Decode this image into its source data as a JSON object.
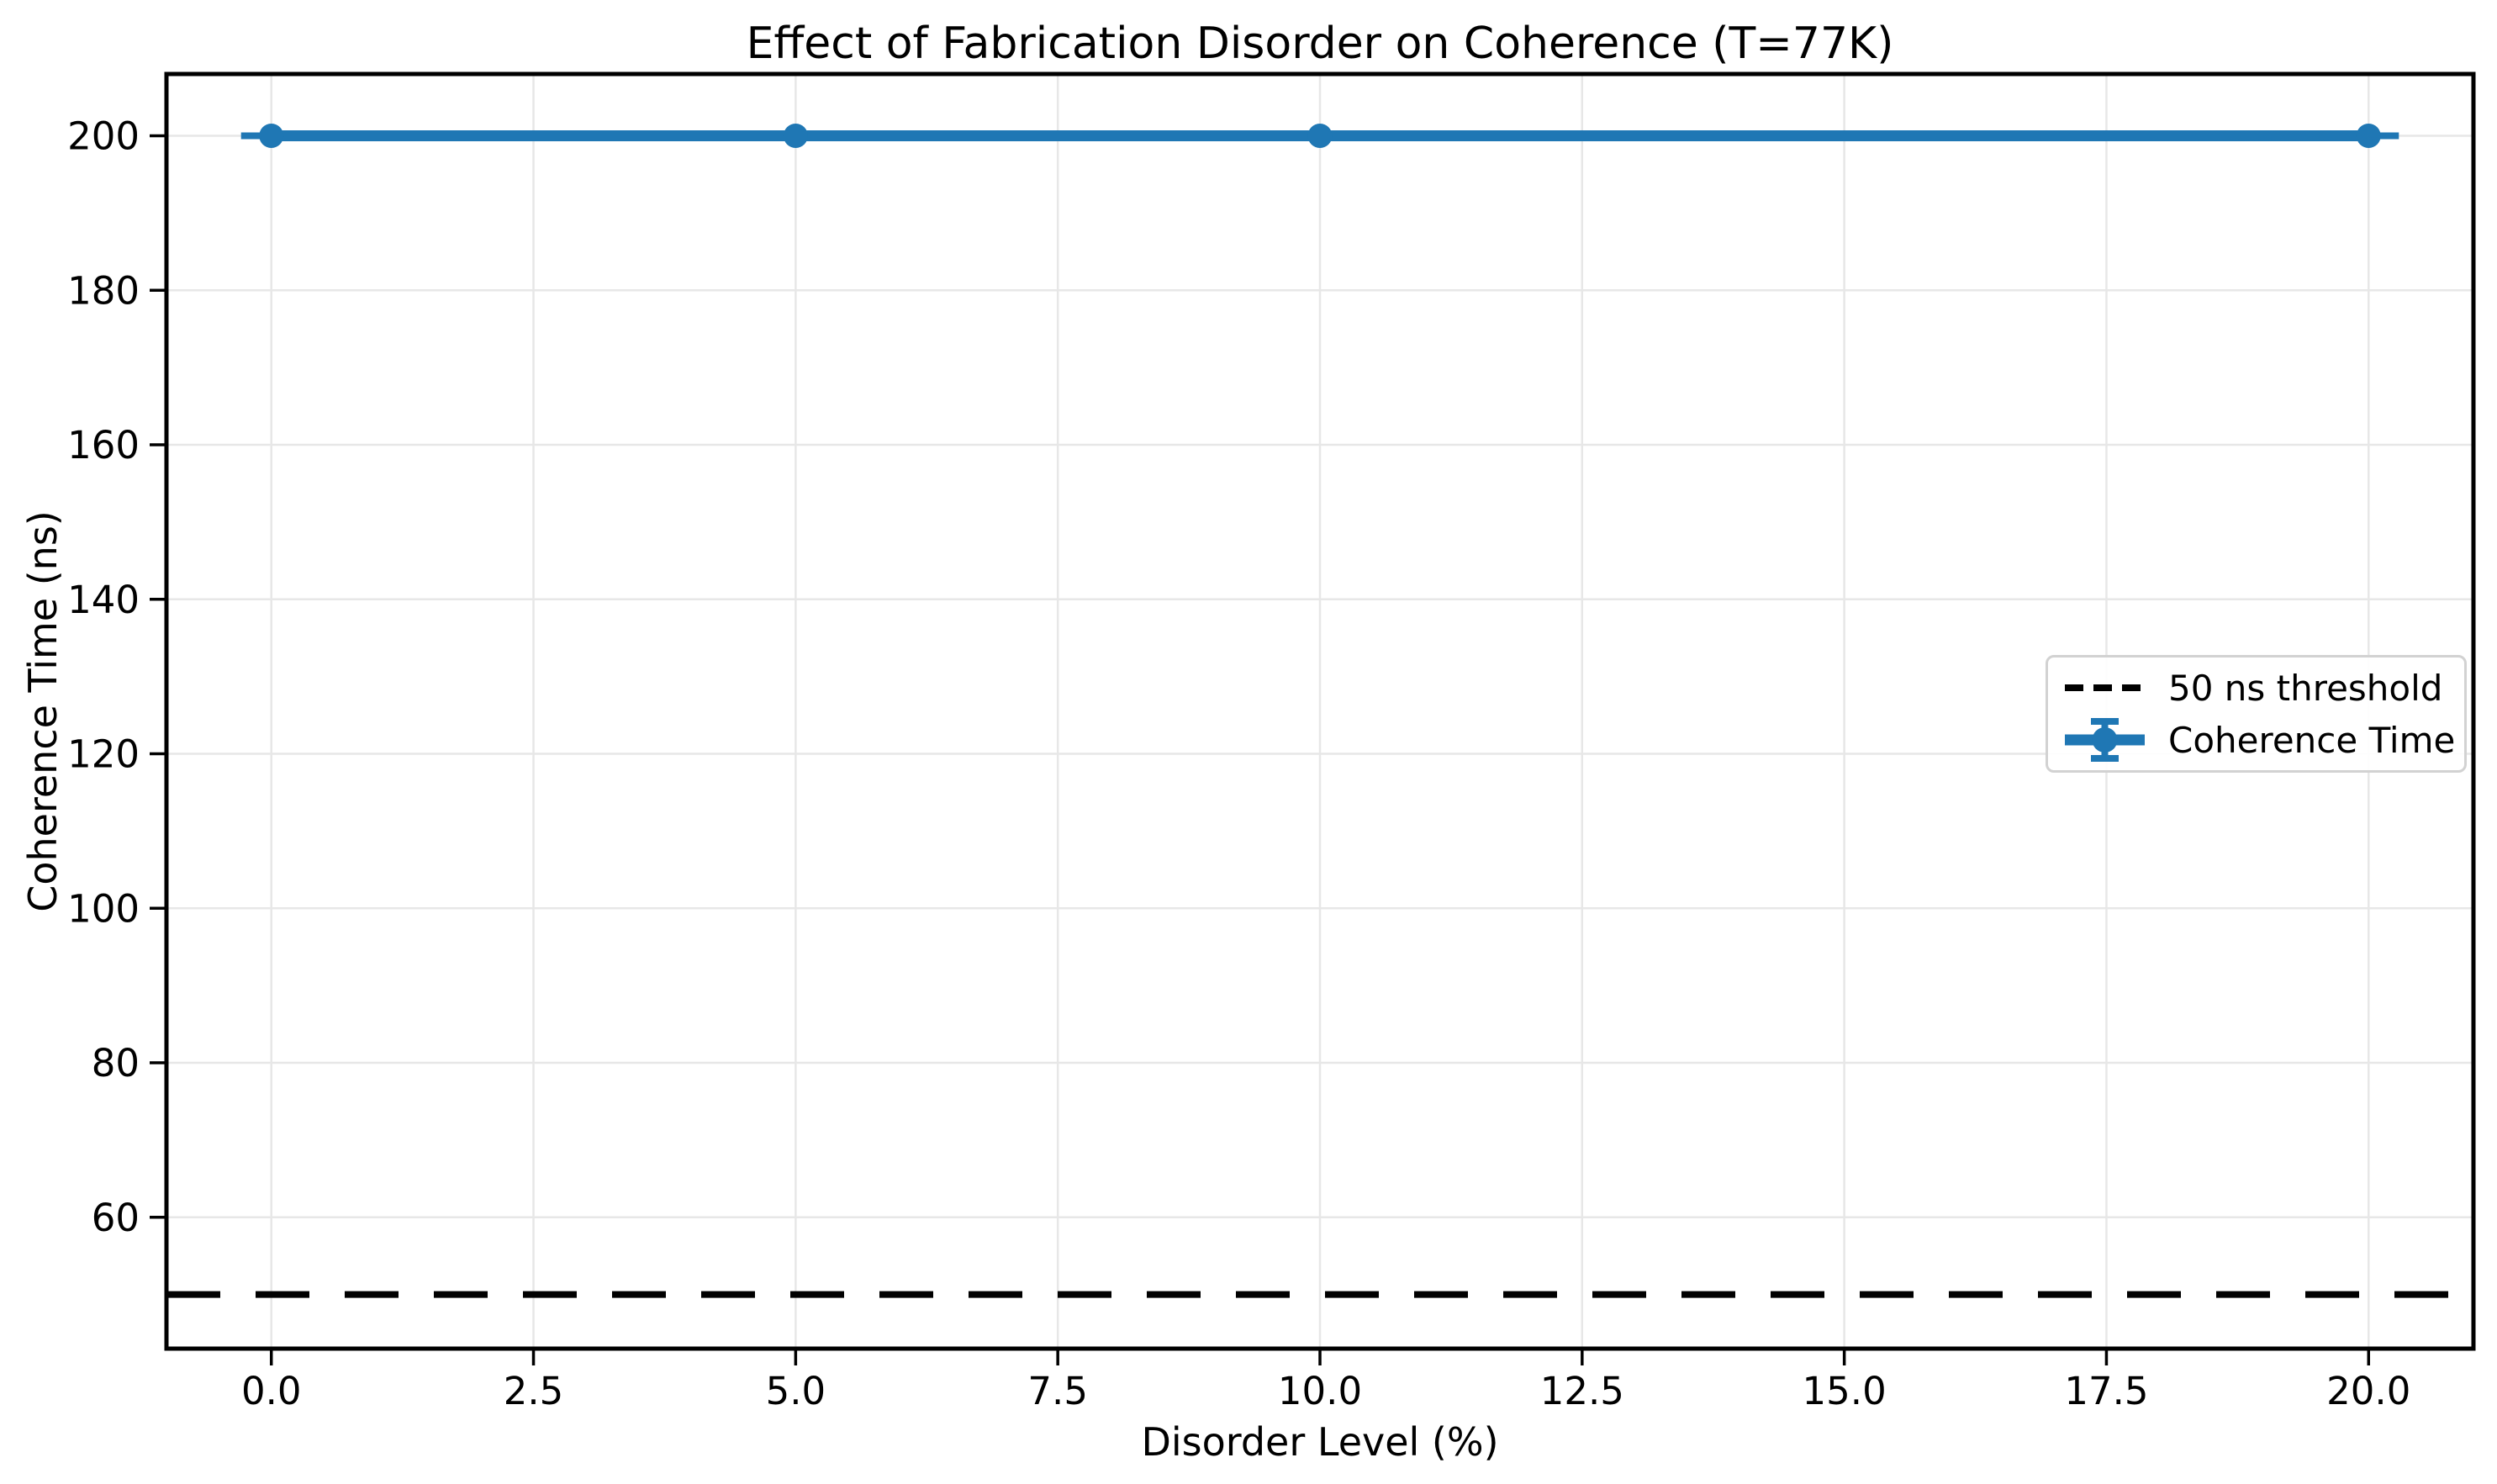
{
  "chart_data": {
    "type": "line",
    "title": "Effect of Fabrication Disorder on Coherence (T=77K)",
    "xlabel": "Disorder Level (%)",
    "ylabel": "Coherence Time (ns)",
    "xlim": [
      -1,
      21
    ],
    "ylim": [
      43,
      208
    ],
    "grid": true,
    "legend_position": "center right",
    "series": [
      {
        "name": "Coherence Time",
        "style": "errorbar-line",
        "marker": "circle",
        "color": "#1f77b4",
        "x": [
          0,
          5,
          10,
          20
        ],
        "y": [
          200,
          200,
          200,
          200
        ]
      }
    ],
    "threshold": {
      "label": "50 ns threshold",
      "value": 50,
      "color": "#000000",
      "line_style": "dashed"
    },
    "xticks": [
      {
        "v": 0,
        "label": "0.0"
      },
      {
        "v": 2.5,
        "label": "2.5"
      },
      {
        "v": 5,
        "label": "5.0"
      },
      {
        "v": 7.5,
        "label": "7.5"
      },
      {
        "v": 10,
        "label": "10.0"
      },
      {
        "v": 12.5,
        "label": "12.5"
      },
      {
        "v": 15,
        "label": "15.0"
      },
      {
        "v": 17.5,
        "label": "17.5"
      },
      {
        "v": 20,
        "label": "20.0"
      }
    ],
    "yticks": [
      {
        "v": 60,
        "label": "60"
      },
      {
        "v": 80,
        "label": "80"
      },
      {
        "v": 100,
        "label": "100"
      },
      {
        "v": 120,
        "label": "120"
      },
      {
        "v": 140,
        "label": "140"
      },
      {
        "v": 160,
        "label": "160"
      },
      {
        "v": 180,
        "label": "180"
      },
      {
        "v": 200,
        "label": "200"
      }
    ],
    "legend": [
      {
        "label": "50 ns threshold",
        "glyph": "dashed-line"
      },
      {
        "label": "Coherence Time",
        "glyph": "errorbar-marker"
      }
    ]
  },
  "colors": {
    "accent": "#1f77b4",
    "threshold": "#000000",
    "grid": "#e7e7e7",
    "spine": "#000000",
    "background": "#ffffff",
    "legend_border": "#d2d2d2"
  }
}
